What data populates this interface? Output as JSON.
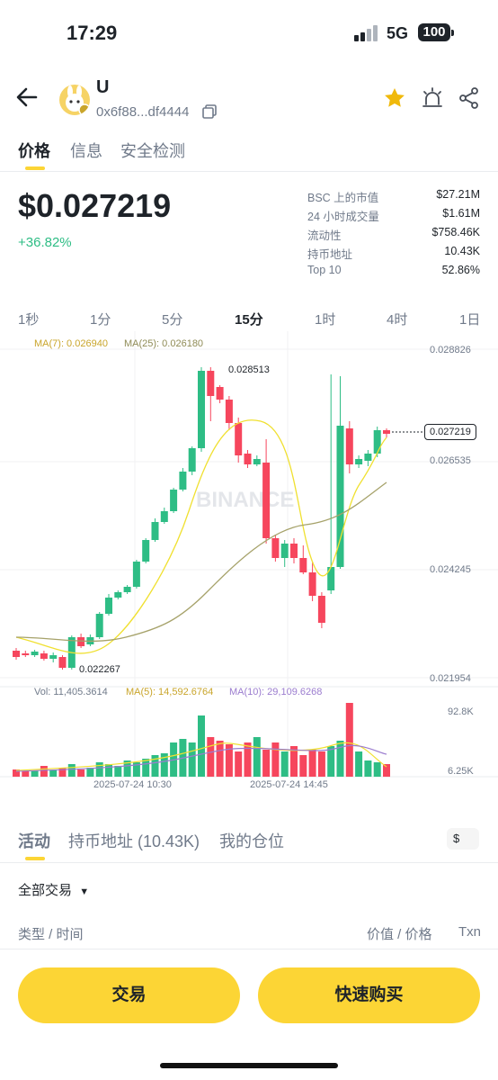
{
  "status_bar": {
    "time": "17:29",
    "network": "5G",
    "battery": "100"
  },
  "header": {
    "token_symbol": "U",
    "address": "0x6f88...df4444"
  },
  "tabs": [
    {
      "label": "价格"
    },
    {
      "label": "信息"
    },
    {
      "label": "安全检测"
    }
  ],
  "price": {
    "value": "$0.027219",
    "change": "+36.82%"
  },
  "stats": [
    {
      "label": "BSC 上的市值",
      "value": "$27.21M"
    },
    {
      "label": "24 小时成交量",
      "value": "$1.61M"
    },
    {
      "label": "流动性",
      "value": "$758.46K"
    },
    {
      "label": "持币地址",
      "value": "10.43K"
    },
    {
      "label": "Top 10",
      "value": "52.86%"
    }
  ],
  "timeframes": [
    "1秒",
    "1分",
    "5分",
    "15分",
    "1时",
    "4时",
    "1日"
  ],
  "active_timeframe": "15分",
  "chart": {
    "ma7_label": "MA(7): 0.026940",
    "ma25_label": "MA(25): 0.026180",
    "y_ticks": [
      "0.028826",
      "0.026535",
      "0.024245",
      "0.021954"
    ],
    "high_label": "0.028513",
    "low_label": "0.022267",
    "current_price": "0.027219",
    "watermark": "BINANCE",
    "vol_label": "Vol: 11,405.3614",
    "vol_ma5_label": "MA(5): 14,592.6764",
    "vol_ma10_label": "MA(10): 29,109.6268",
    "vol_ticks": [
      "92.8K",
      "6.25K"
    ],
    "x_ticks": [
      "2025-07-24 10:30",
      "2025-07-24 14:45"
    ],
    "colors": {
      "up": "#2ebd85",
      "down": "#f6465d",
      "ma7": "#f0e030",
      "ma25": "#a6a26a",
      "ma10": "#9b7ccf"
    }
  },
  "bottom_tabs": [
    {
      "label": "活动"
    },
    {
      "label": "持币地址 (10.43K)"
    },
    {
      "label": "我的仓位"
    }
  ],
  "currency_toggle": "$",
  "filter": "全部交易",
  "list_headers": {
    "type_time": "类型 / 时间",
    "value_price": "价值 / 价格",
    "txn": "Txn"
  },
  "buttons": {
    "trade": "交易",
    "quick_buy": "快速购买"
  },
  "accent": "#fcd535"
}
